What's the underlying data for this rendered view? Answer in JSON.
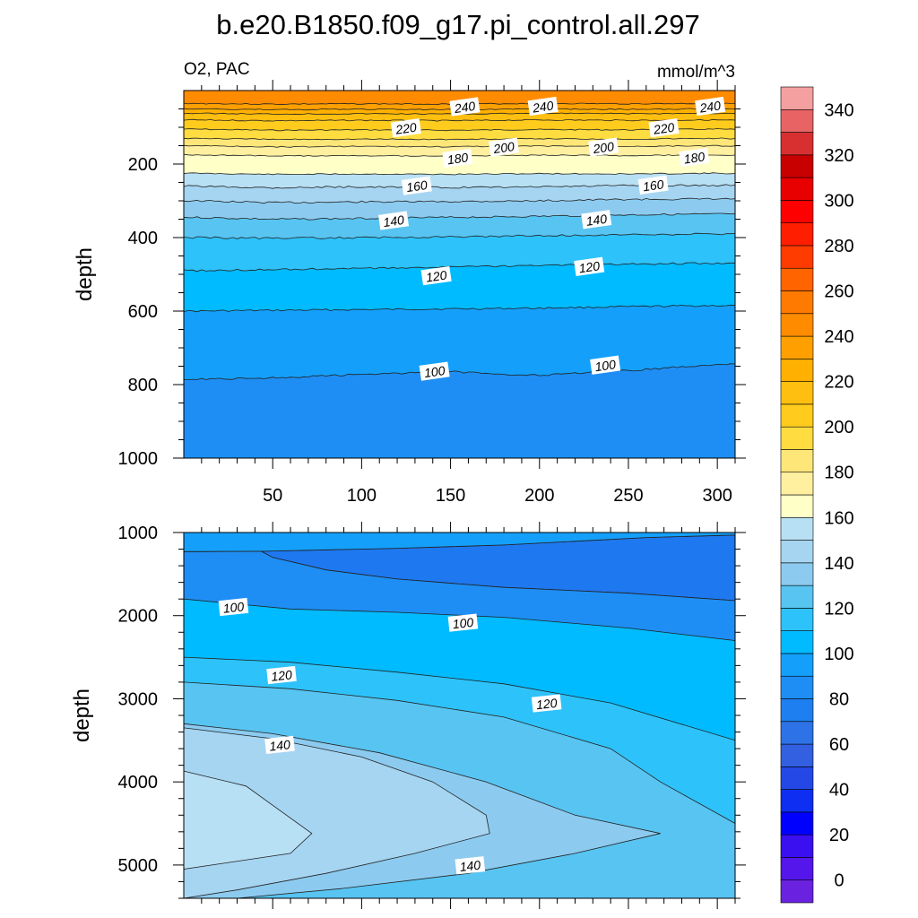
{
  "header": {
    "title": "b.e20.B1850.f09_g17.pi_control.all.297",
    "left_label": "O2, PAC",
    "right_label": "mmol/m^3"
  },
  "colors": {
    "o2_60": "#2860e6",
    "o2_80": "#1e78f0",
    "o2_90": "#1e8ef4",
    "o2_100": "#14a0fa",
    "o2_110": "#00bbff",
    "o2_120": "#2dc2fa",
    "o2_130": "#58c4f2",
    "o2_140": "#8ccbef",
    "o2_150": "#a6d5f2",
    "o2_160": "#b8e0f4",
    "o2_170": "#ffffc8",
    "o2_180": "#fff0a0",
    "o2_190": "#ffe678",
    "o2_200": "#ffdc40",
    "o2_210": "#ffcc1e",
    "o2_220": "#ffbf10",
    "o2_230": "#ffb000",
    "o2_240": "#ffa000",
    "o2_250": "#ff8c00"
  },
  "chart_data": [
    {
      "type": "heatmap",
      "subtype": "filled-contour",
      "title": "b.e20.B1850.f09_g17.pi_control.all.297",
      "left_label": "O2, PAC",
      "right_label": "mmol/m^3",
      "xlabel": "",
      "ylabel": "depth",
      "xlim": [
        0,
        310
      ],
      "ylim": [
        1000,
        0
      ],
      "xticks": [
        50,
        100,
        150,
        200,
        250,
        300
      ],
      "yticks": [
        200,
        400,
        600,
        800,
        1000
      ],
      "x": [
        5,
        50,
        100,
        150,
        200,
        250,
        300,
        310
      ],
      "levels": [
        {
          "value": 250,
          "depth": [
            35,
            37,
            36,
            37,
            35,
            36,
            35,
            36
          ]
        },
        {
          "value": 240,
          "depth": [
            50,
            52,
            51,
            52,
            50,
            51,
            50,
            51
          ]
        },
        {
          "value": 230,
          "depth": [
            62,
            64,
            63,
            64,
            62,
            63,
            62,
            63
          ]
        },
        {
          "value": 220,
          "depth": [
            80,
            82,
            81,
            82,
            80,
            81,
            80,
            81
          ]
        },
        {
          "value": 210,
          "depth": [
            105,
            108,
            107,
            108,
            106,
            107,
            105,
            106
          ]
        },
        {
          "value": 200,
          "depth": [
            130,
            133,
            132,
            133,
            131,
            132,
            130,
            131
          ]
        },
        {
          "value": 190,
          "depth": [
            150,
            153,
            152,
            153,
            151,
            152,
            150,
            151
          ]
        },
        {
          "value": 180,
          "depth": [
            175,
            178,
            177,
            178,
            176,
            177,
            175,
            176
          ]
        },
        {
          "value": 170,
          "depth": [
            225,
            228,
            227,
            228,
            226,
            227,
            225,
            226
          ]
        },
        {
          "value": 160,
          "depth": [
            260,
            264,
            262,
            264,
            262,
            258,
            258,
            258
          ]
        },
        {
          "value": 150,
          "depth": [
            300,
            305,
            303,
            302,
            300,
            296,
            295,
            295
          ]
        },
        {
          "value": 140,
          "depth": [
            345,
            350,
            348,
            345,
            342,
            338,
            336,
            336
          ]
        },
        {
          "value": 130,
          "depth": [
            400,
            402,
            400,
            398,
            395,
            392,
            390,
            390
          ]
        },
        {
          "value": 120,
          "depth": [
            490,
            487,
            484,
            480,
            476,
            472,
            470,
            470
          ]
        },
        {
          "value": 110,
          "depth": [
            600,
            598,
            596,
            594,
            592,
            588,
            585,
            585
          ]
        },
        {
          "value": 100,
          "depth": [
            785,
            782,
            772,
            765,
            775,
            762,
            745,
            745
          ]
        }
      ],
      "contour_labels": [
        {
          "value": "240",
          "x": 158,
          "depth": 45
        },
        {
          "value": "240",
          "x": 202,
          "depth": 44
        },
        {
          "value": "240",
          "x": 296,
          "depth": 44
        },
        {
          "value": "220",
          "x": 125,
          "depth": 103
        },
        {
          "value": "220",
          "x": 270,
          "depth": 103
        },
        {
          "value": "200",
          "x": 180,
          "depth": 155
        },
        {
          "value": "200",
          "x": 236,
          "depth": 155
        },
        {
          "value": "180",
          "x": 154,
          "depth": 185
        },
        {
          "value": "180",
          "x": 287,
          "depth": 183
        },
        {
          "value": "160",
          "x": 131,
          "depth": 260
        },
        {
          "value": "160",
          "x": 264,
          "depth": 258
        },
        {
          "value": "140",
          "x": 118,
          "depth": 355
        },
        {
          "value": "140",
          "x": 232,
          "depth": 352
        },
        {
          "value": "120",
          "x": 142,
          "depth": 505
        },
        {
          "value": "120",
          "x": 228,
          "depth": 480
        },
        {
          "value": "100",
          "x": 141,
          "depth": 765
        },
        {
          "value": "100",
          "x": 237,
          "depth": 748
        }
      ]
    },
    {
      "type": "heatmap",
      "subtype": "filled-contour",
      "xlabel": "",
      "ylabel": "depth",
      "xlim": [
        0,
        310
      ],
      "ylim": [
        5400,
        1000
      ],
      "yticks": [
        1000,
        2000,
        3000,
        4000,
        5000
      ],
      "base_value": 110,
      "regions": [
        {
          "value": 80,
          "points": [
            [
              45,
              1225
            ],
            [
              120,
              1190
            ],
            [
              180,
              1150
            ],
            [
              260,
              1060
            ],
            [
              310,
              1030
            ],
            [
              310,
              1820
            ],
            [
              250,
              1730
            ],
            [
              180,
              1660
            ],
            [
              120,
              1560
            ],
            [
              80,
              1450
            ],
            [
              50,
              1300
            ],
            [
              43,
              1220
            ]
          ]
        },
        {
          "value": 90,
          "points": [
            [
              0,
              1800
            ],
            [
              60,
              1920
            ],
            [
              120,
              1960
            ],
            [
              180,
              2020
            ],
            [
              250,
              2150
            ],
            [
              310,
              2300
            ],
            [
              310,
              1820
            ],
            [
              250,
              1730
            ],
            [
              180,
              1660
            ],
            [
              120,
              1560
            ],
            [
              80,
              1450
            ],
            [
              50,
              1300
            ],
            [
              43,
              1220
            ],
            [
              45,
              1225
            ],
            [
              0,
              1230
            ]
          ]
        },
        {
          "value": 100,
          "points": [
            [
              0,
              1230
            ],
            [
              45,
              1225
            ],
            [
              120,
              1190
            ],
            [
              180,
              1150
            ],
            [
              260,
              1060
            ],
            [
              310,
              1030
            ],
            [
              310,
              1000
            ],
            [
              0,
              1000
            ]
          ]
        },
        {
          "value": 120,
          "points": [
            [
              0,
              2500
            ],
            [
              60,
              2560
            ],
            [
              120,
              2680
            ],
            [
              180,
              2820
            ],
            [
              240,
              3050
            ],
            [
              310,
              3500
            ],
            [
              310,
              5400
            ],
            [
              0,
              5400
            ]
          ]
        },
        {
          "value": 130,
          "points": [
            [
              0,
              2800
            ],
            [
              60,
              2880
            ],
            [
              120,
              3020
            ],
            [
              180,
              3220
            ],
            [
              240,
              3600
            ],
            [
              268,
              4000
            ],
            [
              310,
              4500
            ],
            [
              310,
              5400
            ],
            [
              0,
              5400
            ]
          ]
        },
        {
          "value": 140,
          "points": [
            [
              0,
              3300
            ],
            [
              50,
              3420
            ],
            [
              110,
              3650
            ],
            [
              170,
              4000
            ],
            [
              220,
              4400
            ],
            [
              268,
              4620
            ],
            [
              220,
              4860
            ],
            [
              160,
              5100
            ],
            [
              90,
              5280
            ],
            [
              30,
              5400
            ],
            [
              0,
              5400
            ]
          ]
        },
        {
          "value": 150,
          "points": [
            [
              0,
              3350
            ],
            [
              50,
              3480
            ],
            [
              100,
              3700
            ],
            [
              140,
              4000
            ],
            [
              170,
              4400
            ],
            [
              172,
              4620
            ],
            [
              130,
              4860
            ],
            [
              80,
              5100
            ],
            [
              30,
              5300
            ],
            [
              0,
              5400
            ]
          ]
        },
        {
          "value": 160,
          "points": [
            [
              0,
              3870
            ],
            [
              35,
              4050
            ],
            [
              72,
              4620
            ],
            [
              60,
              4860
            ],
            [
              0,
              5050
            ]
          ]
        }
      ],
      "contour_labels": [
        {
          "value": "100",
          "x": 28,
          "depth": 1900
        },
        {
          "value": "100",
          "x": 157,
          "depth": 2090
        },
        {
          "value": "120",
          "x": 55,
          "depth": 2720
        },
        {
          "value": "120",
          "x": 204,
          "depth": 3060
        },
        {
          "value": "140",
          "x": 54,
          "depth": 3560
        },
        {
          "value": "140",
          "x": 161,
          "depth": 5010
        }
      ]
    },
    {
      "type": "colorbar",
      "tick_labels": [
        "0",
        "20",
        "40",
        "60",
        "80",
        "100",
        "120",
        "140",
        "160",
        "180",
        "200",
        "220",
        "240",
        "260",
        "280",
        "300",
        "320",
        "340"
      ],
      "bins": [
        "#6a22e0",
        "#5416ea",
        "#3b10f0",
        "#0000ff",
        "#0e2ef2",
        "#2448e6",
        "#3260e0",
        "#2e72e8",
        "#1e80f0",
        "#1e8ef4",
        "#14a0fa",
        "#00bbff",
        "#2dc2fa",
        "#58c4f2",
        "#8ccbef",
        "#a6d5f2",
        "#b8e0f4",
        "#ffffc8",
        "#fff0a0",
        "#ffe678",
        "#ffdc40",
        "#ffcc1e",
        "#ffbf10",
        "#ffb000",
        "#ffa000",
        "#ff8c00",
        "#ff7a00",
        "#ff6400",
        "#ff3c00",
        "#ff1e00",
        "#ff0000",
        "#e80000",
        "#c80000",
        "#d83030",
        "#e86464",
        "#f4a0a0"
      ]
    }
  ]
}
